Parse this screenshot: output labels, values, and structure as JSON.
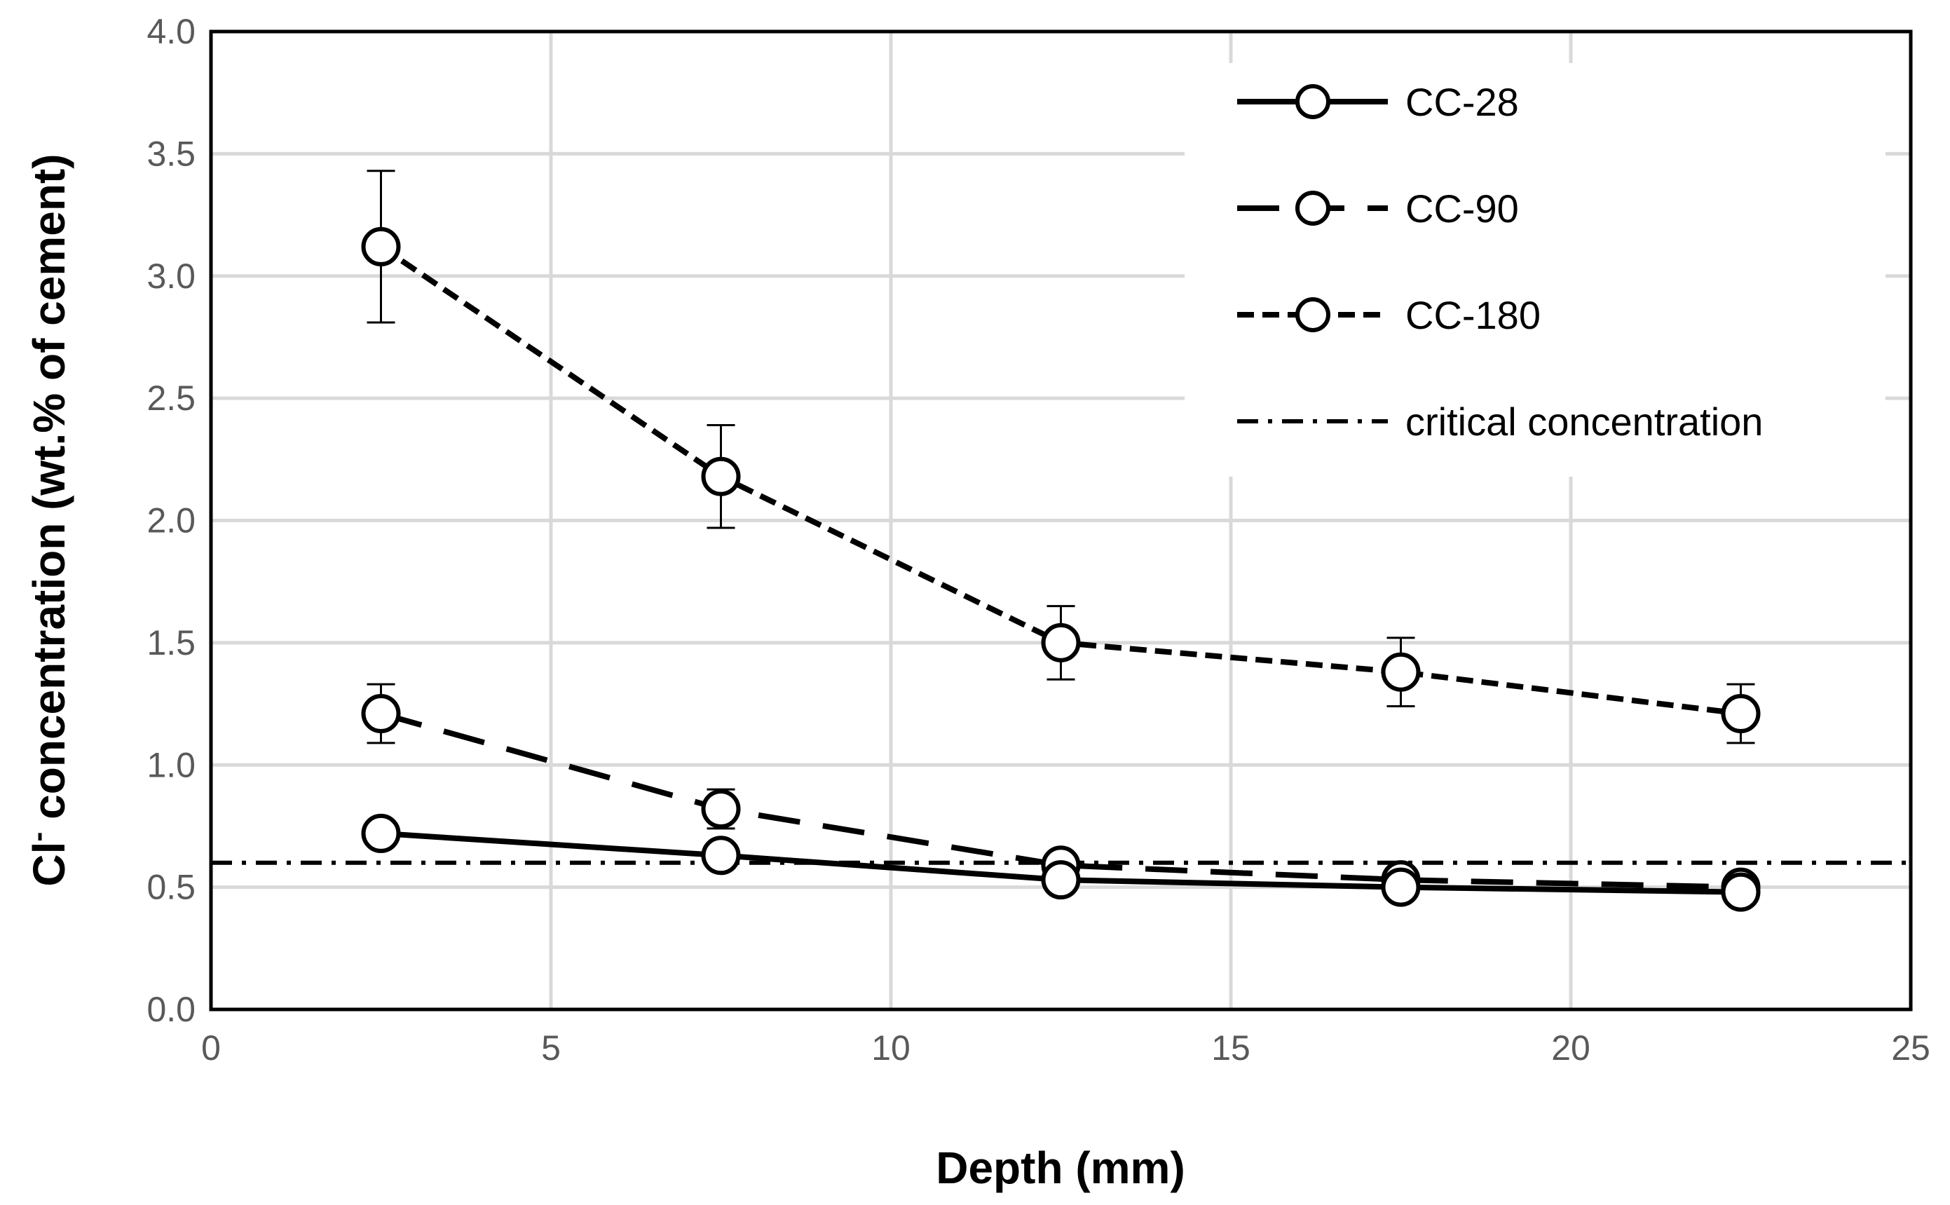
{
  "chart_data": {
    "type": "line",
    "title": "",
    "xlabel": "Depth (mm)",
    "ylabel_main": "Cl",
    "ylabel_sup": "-",
    "ylabel_rest": " concentration (wt.% of cement)",
    "xlim": [
      0,
      25
    ],
    "ylim": [
      0.0,
      4.0
    ],
    "xticks": [
      0,
      5,
      10,
      15,
      20,
      25
    ],
    "xtick_labels": [
      "0",
      "5",
      "10",
      "15",
      "20",
      "25"
    ],
    "yticks": [
      0.0,
      0.5,
      1.0,
      1.5,
      2.0,
      2.5,
      3.0,
      3.5,
      4.0
    ],
    "ytick_labels": [
      "0.0",
      "0.5",
      "1.0",
      "1.5",
      "2.0",
      "2.5",
      "3.0",
      "3.5",
      "4.0"
    ],
    "grid": true,
    "legend_position": "top-right",
    "x": [
      2.5,
      7.5,
      12.5,
      17.5,
      22.5
    ],
    "series": [
      {
        "name": "CC-28",
        "style": "solid",
        "values": [
          0.72,
          0.63,
          0.53,
          0.5,
          0.48
        ],
        "errors": [
          null,
          null,
          null,
          null,
          null
        ]
      },
      {
        "name": "CC-90",
        "style": "long-dash",
        "values": [
          1.21,
          0.82,
          0.59,
          0.53,
          0.5
        ],
        "errors": [
          0.12,
          0.08,
          null,
          null,
          null
        ]
      },
      {
        "name": "CC-180",
        "style": "short-dash",
        "values": [
          3.12,
          2.18,
          1.5,
          1.38,
          1.21
        ],
        "errors": [
          0.31,
          0.21,
          0.15,
          0.14,
          0.12
        ]
      }
    ],
    "reference_line": {
      "name": "critical concentration",
      "style": "dash-dot",
      "value": 0.6
    },
    "colors": {
      "line": "#000000",
      "grid": "#d9d9d9",
      "tick_text": "#595959",
      "marker_fill": "#ffffff"
    }
  }
}
